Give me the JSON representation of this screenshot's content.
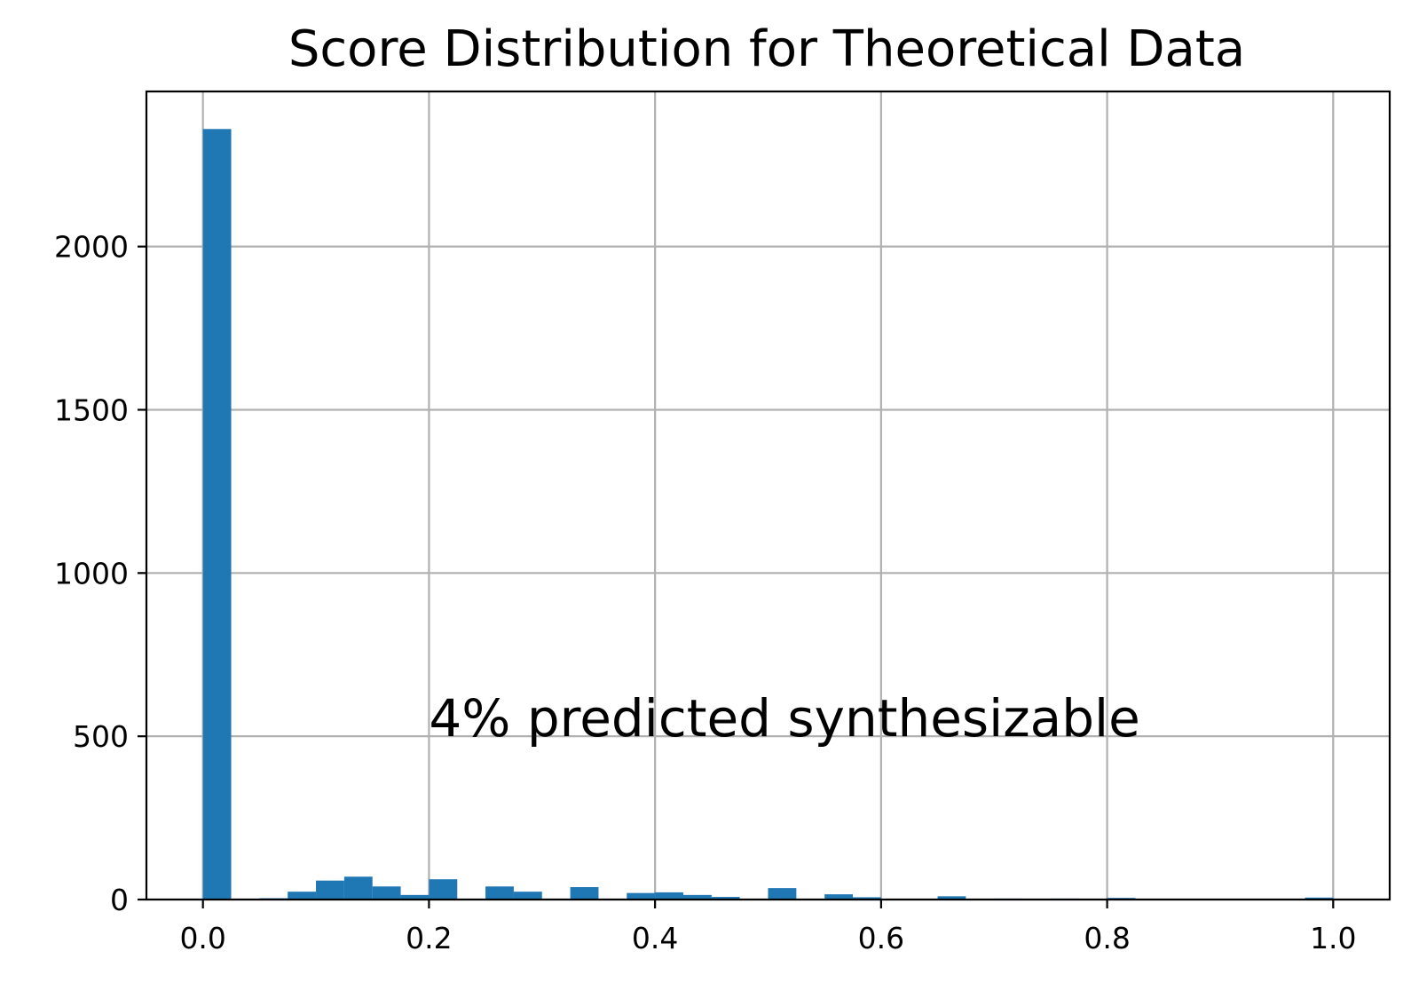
{
  "chart_data": {
    "type": "bar",
    "title": "Score Distribution for Theoretical Data",
    "xlabel": "",
    "ylabel": "",
    "xlim": [
      -0.05,
      1.05
    ],
    "ylim": [
      0,
      2475
    ],
    "grid": true,
    "color": "#1f77b4",
    "xticks": [
      0.0,
      0.2,
      0.4,
      0.6,
      0.8,
      1.0
    ],
    "xtick_labels": [
      "0.0",
      "0.2",
      "0.4",
      "0.6",
      "0.8",
      "1.0"
    ],
    "yticks": [
      0,
      500,
      1000,
      1500,
      2000
    ],
    "ytick_labels": [
      "0",
      "500",
      "1000",
      "1500",
      "2000"
    ],
    "bin_width": 0.025,
    "bin_starts": [
      0.0,
      0.025,
      0.05,
      0.075,
      0.1,
      0.125,
      0.15,
      0.175,
      0.2,
      0.225,
      0.25,
      0.275,
      0.3,
      0.325,
      0.35,
      0.375,
      0.4,
      0.425,
      0.45,
      0.475,
      0.5,
      0.525,
      0.55,
      0.575,
      0.6,
      0.625,
      0.65,
      0.675,
      0.7,
      0.725,
      0.75,
      0.775,
      0.8,
      0.825,
      0.85,
      0.875,
      0.9,
      0.925,
      0.95,
      0.975
    ],
    "values": [
      2360,
      0,
      4,
      24,
      58,
      70,
      40,
      14,
      62,
      0,
      40,
      24,
      0,
      38,
      0,
      20,
      22,
      14,
      8,
      0,
      35,
      0,
      16,
      7,
      0,
      2,
      10,
      0,
      3,
      0,
      3,
      0,
      5,
      0,
      0,
      0,
      0,
      0,
      0,
      6
    ],
    "annotation": {
      "text": "4% predicted synthesizable",
      "x": 0.2,
      "y": 500
    }
  }
}
